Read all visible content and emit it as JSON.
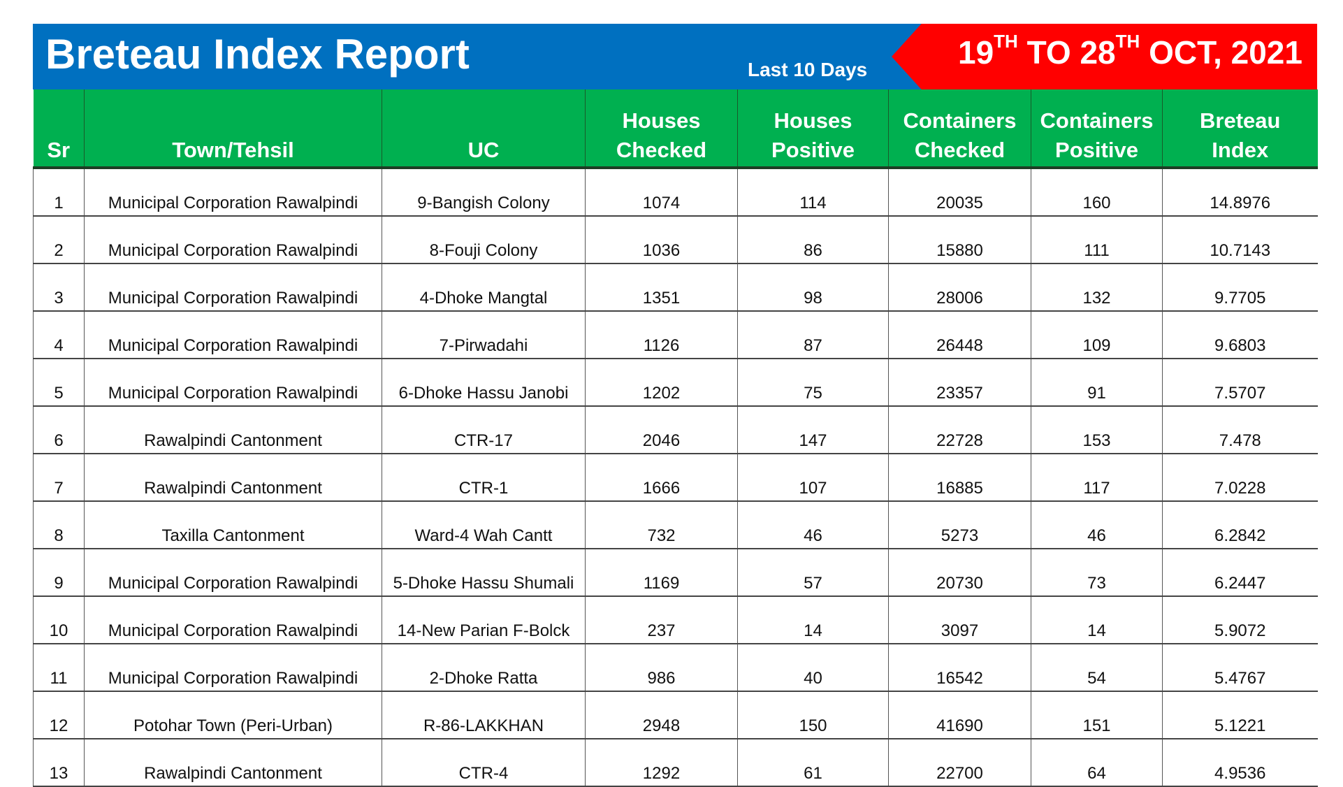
{
  "header": {
    "title": "Breteau Index Report",
    "subtitle": "Last 10 Days",
    "date_range": {
      "d1": "19",
      "s1": "TH",
      "mid": " TO ",
      "d2": "28",
      "s2": "TH",
      "end": " OCT, 2021"
    },
    "colors": {
      "banner": "#0070c0",
      "date_banner": "#ff0000",
      "table_header": "#00b050"
    }
  },
  "table": {
    "columns": [
      "Sr",
      "Town/Tehsil",
      "UC",
      "Houses Checked",
      "Houses Positive",
      "Containers Checked",
      "Containers Positive",
      "Breteau Index"
    ],
    "column_lines": [
      [
        "Sr"
      ],
      [
        "Town/Tehsil"
      ],
      [
        "UC"
      ],
      [
        "Houses",
        "Checked"
      ],
      [
        "Houses",
        "Positive"
      ],
      [
        "Containers",
        "Checked"
      ],
      [
        "Containers",
        "Positive"
      ],
      [
        "Breteau",
        "Index"
      ]
    ],
    "rows": [
      [
        "1",
        "Municipal Corporation Rawalpindi",
        "9-Bangish Colony",
        "1074",
        "114",
        "20035",
        "160",
        "14.8976"
      ],
      [
        "2",
        "Municipal Corporation Rawalpindi",
        "8-Fouji Colony",
        "1036",
        "86",
        "15880",
        "111",
        "10.7143"
      ],
      [
        "3",
        "Municipal Corporation Rawalpindi",
        "4-Dhoke Mangtal",
        "1351",
        "98",
        "28006",
        "132",
        "9.7705"
      ],
      [
        "4",
        "Municipal Corporation Rawalpindi",
        "7-Pirwadahi",
        "1126",
        "87",
        "26448",
        "109",
        "9.6803"
      ],
      [
        "5",
        "Municipal Corporation Rawalpindi",
        "6-Dhoke Hassu Janobi",
        "1202",
        "75",
        "23357",
        "91",
        "7.5707"
      ],
      [
        "6",
        "Rawalpindi Cantonment",
        "CTR-17",
        "2046",
        "147",
        "22728",
        "153",
        "7.478"
      ],
      [
        "7",
        "Rawalpindi Cantonment",
        "CTR-1",
        "1666",
        "107",
        "16885",
        "117",
        "7.0228"
      ],
      [
        "8",
        "Taxilla Cantonment",
        "Ward-4 Wah Cantt",
        "732",
        "46",
        "5273",
        "46",
        "6.2842"
      ],
      [
        "9",
        "Municipal Corporation Rawalpindi",
        "5-Dhoke Hassu Shumali",
        "1169",
        "57",
        "20730",
        "73",
        "6.2447"
      ],
      [
        "10",
        "Municipal Corporation Rawalpindi",
        "14-New Parian F-Bolck",
        "237",
        "14",
        "3097",
        "14",
        "5.9072"
      ],
      [
        "11",
        "Municipal Corporation Rawalpindi",
        "2-Dhoke Ratta",
        "986",
        "40",
        "16542",
        "54",
        "5.4767"
      ],
      [
        "12",
        "Potohar Town (Peri-Urban)",
        "R-86-LAKKHAN",
        "2948",
        "150",
        "41690",
        "151",
        "5.1221"
      ],
      [
        "13",
        "Rawalpindi Cantonment",
        "CTR-4",
        "1292",
        "61",
        "22700",
        "64",
        "4.9536"
      ]
    ]
  }
}
